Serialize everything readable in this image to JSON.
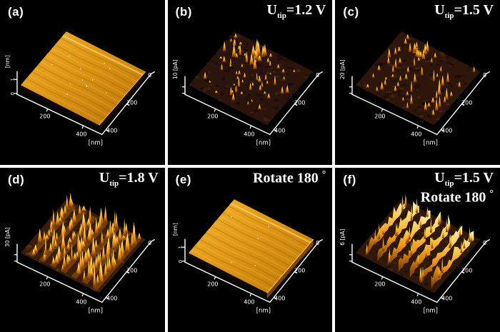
{
  "figure": {
    "background": "#000000",
    "divider_color": "#ffffff",
    "grid": {
      "rows": 2,
      "columns": 3
    },
    "spike_palette": {
      "tip": "#fff6c8",
      "high": "#ffd75e",
      "mid": "#f59b16",
      "low": "#6e3300"
    }
  },
  "chart_data": [
    {
      "panel": "(a)",
      "type": "3d-surface",
      "signal": "topography",
      "annotation_lines": [],
      "axes": {
        "xlabel": "[nm]",
        "x_ticks": [
          "200",
          "400"
        ],
        "y_ticks": [
          "0",
          "200",
          "400"
        ],
        "x_range_nm": [
          0,
          400
        ],
        "y_range_nm": [
          0,
          400
        ],
        "zlabel": "[nm]",
        "z_ticks": [
          "1",
          "0"
        ],
        "z_range_nm": [
          0,
          1
        ]
      },
      "surface": "flat gold film, ~1 nm corrugation, faint scan-line streaks",
      "render": {
        "mode": "flat",
        "seed": 11,
        "light": "#f3b02a",
        "base": "#dd9414",
        "dark": "#b87506",
        "side_left": "#0b0500",
        "side_right": "#170b00",
        "edge": "#f0b84a",
        "specks": 12
      }
    },
    {
      "panel": "(b)",
      "type": "3d-surface",
      "signal": "tip current",
      "annotation_lines": [
        [
          {
            "t": "U"
          },
          {
            "t": "tip",
            "sub": true
          },
          {
            "t": "=1.2 V"
          }
        ]
      ],
      "axes": {
        "xlabel": "[nm]",
        "x_ticks": [
          "200",
          "400"
        ],
        "y_ticks": [
          "0",
          "200",
          "400"
        ],
        "x_range_nm": [
          0,
          400
        ],
        "y_range_nm": [
          0,
          400
        ],
        "zlabel": "10 [pA]",
        "z_ticks": [],
        "z_full_scale_pA": 10
      },
      "surface": "dark brown base with sparse bright current spikes, cluster near upper right",
      "render": {
        "mode": "scatter",
        "seed": 22,
        "base": "#2b140c",
        "mottle_dark": "#120602",
        "mottle_light": "#5a3014",
        "count": 58,
        "cluster": 14
      }
    },
    {
      "panel": "(c)",
      "type": "3d-surface",
      "signal": "tip current",
      "annotation_lines": [
        [
          {
            "t": "U"
          },
          {
            "t": "tip",
            "sub": true
          },
          {
            "t": "=1.5 V"
          }
        ]
      ],
      "axes": {
        "xlabel": "[nm]",
        "x_ticks": [
          "200",
          "400"
        ],
        "y_ticks": [
          "0",
          "200",
          "400"
        ],
        "x_range_nm": [
          0,
          400
        ],
        "y_range_nm": [
          0,
          400
        ],
        "zlabel": "20 [pA]",
        "z_ticks": [],
        "z_full_scale_pA": 20
      },
      "surface": "dark base with medium-density current spikes arranged in diagonal rows",
      "render": {
        "mode": "rows",
        "seed": 33,
        "base": "#2e160a",
        "mottle_dark": "#140702",
        "mottle_light": "#64361a",
        "rows": 7,
        "per_row": 13,
        "skip": 0.42,
        "h_min": 4,
        "h_max": 16,
        "w_min": 1.5,
        "w_max": 2.6,
        "band": false,
        "cluster": 8
      }
    },
    {
      "panel": "(d)",
      "type": "3d-surface",
      "signal": "tip current",
      "annotation_lines": [
        [
          {
            "t": "U"
          },
          {
            "t": "tip",
            "sub": true
          },
          {
            "t": "=1.8 V"
          }
        ]
      ],
      "axes": {
        "xlabel": "[nm]",
        "x_ticks": [
          "200",
          "400"
        ],
        "y_ticks": [
          "0",
          "200",
          "400"
        ],
        "x_range_nm": [
          0,
          400
        ],
        "y_range_nm": [
          0,
          400
        ],
        "zlabel": "30 [pA]",
        "z_ticks": [],
        "z_full_scale_pA": 30
      },
      "surface": "dense golden current spikes in ~7 diagonal rows covering the surface",
      "render": {
        "mode": "rows",
        "seed": 44,
        "base": "#3a1d0c",
        "mottle_dark": "#1a0c03",
        "mottle_light": "#8a4c12",
        "rows": 7,
        "per_row": 19,
        "skip": 0.08,
        "h_min": 8,
        "h_max": 26,
        "w_min": 2,
        "w_max": 3.8,
        "band": true,
        "band_color": "#a85e06",
        "cluster": 0
      }
    },
    {
      "panel": "(e)",
      "type": "3d-surface",
      "signal": "topography",
      "annotation_lines": [
        [
          {
            "t": "Rotate 180 "
          },
          {
            "t": "°",
            "sup": true
          }
        ]
      ],
      "axes": {
        "xlabel": "[nm]",
        "x_ticks": [
          "200",
          "400"
        ],
        "y_ticks": [
          "0",
          "200",
          "400"
        ],
        "x_range_nm": [
          0,
          400
        ],
        "y_range_nm": [
          0,
          400
        ],
        "zlabel": "[nm]",
        "z_ticks": [
          "1",
          "0"
        ],
        "z_range_nm": [
          0,
          1
        ]
      },
      "surface": "flat gold film after 180° rotation, bright front-right edge",
      "render": {
        "mode": "flat",
        "seed": 55,
        "light": "#f6b72f",
        "base": "#e09716",
        "dark": "#bd7a06",
        "side_left": "#0d0600",
        "side_right": "#7a4404",
        "edge": "#ffc33f",
        "specks": 5
      }
    },
    {
      "panel": "(f)",
      "type": "3d-surface",
      "signal": "tip current",
      "annotation_lines": [
        [
          {
            "t": "U"
          },
          {
            "t": "tip",
            "sub": true
          },
          {
            "t": "=1.5 V"
          }
        ],
        [
          {
            "t": "Rotate 180 "
          },
          {
            "t": "°",
            "sup": true
          }
        ]
      ],
      "axes": {
        "xlabel": "[nm]",
        "x_ticks": [
          "200",
          "400"
        ],
        "y_ticks": [
          "0",
          "200",
          "400"
        ],
        "x_range_nm": [
          0,
          400
        ],
        "y_range_nm": [
          0,
          400
        ],
        "zlabel": "6 [pA]",
        "z_ticks": [],
        "z_full_scale_pA": 6
      },
      "surface": "continuous jagged current ridges in ~7 diagonal rows with dark valleys",
      "render": {
        "mode": "ridges",
        "seed": 66,
        "base": "#30180a",
        "mottle_dark": "#150903",
        "mottle_light": "#6b3a16",
        "rows": 7,
        "h_min": 5,
        "h_max": 15
      }
    }
  ]
}
